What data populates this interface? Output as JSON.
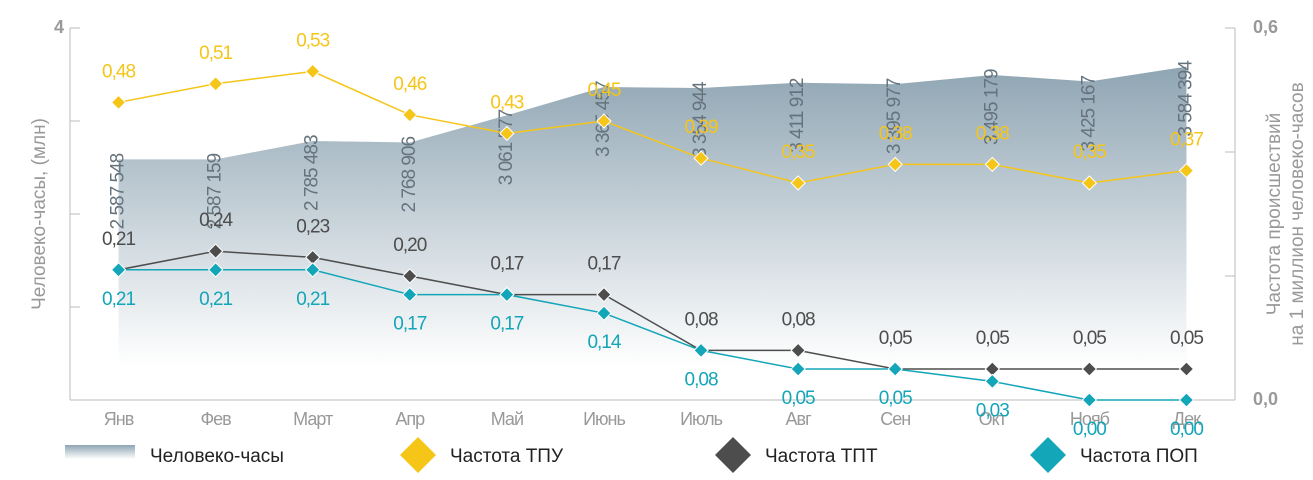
{
  "chart_data": {
    "type": "line",
    "categories": [
      "Янв",
      "Фев",
      "Март",
      "Апр",
      "Май",
      "Июнь",
      "Июль",
      "Авг",
      "Сен",
      "Окт",
      "Нояб",
      "Дек"
    ],
    "ylabel": "Человеко-часы, (млн)",
    "y2label": [
      "Частота происшествий",
      "на 1 миллион человеко-часов"
    ],
    "ylim": [
      0,
      4
    ],
    "yticks": [
      4
    ],
    "yticks_minor": [
      1,
      2,
      3
    ],
    "y2lim": [
      0,
      0.6
    ],
    "y2ticks": [
      {
        "value": 0,
        "label": "0,0"
      },
      {
        "value": 0.6,
        "label": "0,6"
      }
    ],
    "y2ticks_minor": [
      0.2,
      0.4
    ],
    "series": [
      {
        "name": "Человеко-часы",
        "type": "area",
        "axis": "y",
        "color": "#8fa5b3",
        "values": [
          2.587548,
          2.587159,
          2.785483,
          2.768906,
          3.061577,
          3.365457,
          3.354944,
          3.411912,
          3.395977,
          3.495179,
          3.425167,
          3.584394
        ],
        "value_labels": [
          "2 587 548",
          "2 587 159",
          "2 785 483",
          "2 768 906",
          "3 061 577",
          "3 365 457",
          "3 354 944",
          "3 411 912",
          "3 395 977",
          "3 495 179",
          "3 425 167",
          "3 584 394"
        ]
      },
      {
        "name": "Частота ТПУ",
        "type": "line",
        "axis": "y2",
        "color": "#f5c518",
        "label_pos": "above",
        "values": [
          0.48,
          0.51,
          0.53,
          0.46,
          0.43,
          0.45,
          0.39,
          0.35,
          0.38,
          0.38,
          0.35,
          0.37
        ],
        "value_labels": [
          "0,48",
          "0,51",
          "0,53",
          "0,46",
          "0,43",
          "0,45",
          "0,39",
          "0,35",
          "0,38",
          "0,38",
          "0,35",
          "0,37"
        ]
      },
      {
        "name": "Частота ТПТ",
        "type": "line",
        "axis": "y2",
        "color": "#4d4d4d",
        "label_pos": "above",
        "values": [
          0.21,
          0.24,
          0.23,
          0.2,
          0.17,
          0.17,
          0.08,
          0.08,
          0.05,
          0.05,
          0.05,
          0.05
        ],
        "value_labels": [
          "0,21",
          "0,24",
          "0,23",
          "0,20",
          "0,17",
          "0,17",
          "0,08",
          "0,08",
          "0,05",
          "0,05",
          "0,05",
          "0,05"
        ]
      },
      {
        "name": "Частота ПОП",
        "type": "line",
        "axis": "y2",
        "color": "#13a5b8",
        "label_pos": "below",
        "values": [
          0.21,
          0.21,
          0.21,
          0.17,
          0.17,
          0.14,
          0.08,
          0.05,
          0.05,
          0.03,
          0.0,
          0.0
        ],
        "value_labels": [
          "0,21",
          "0,21",
          "0,21",
          "0,17",
          "0,17",
          "0,14",
          "0,08",
          "0,05",
          "0,05",
          "0,03",
          "0,00",
          "0,00"
        ]
      }
    ]
  }
}
